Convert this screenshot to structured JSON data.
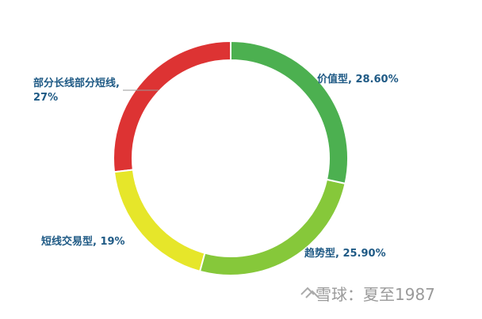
{
  "chart_data": {
    "type": "donut",
    "values": [
      28.6,
      25.9,
      19,
      27
    ],
    "value_labels": [
      "价值型, 28.60%",
      "趋势型, 25.90%",
      "短线交易型, 19%",
      "部分长线部分短线, 27%"
    ],
    "colors": [
      "#4cb050",
      "#86c83a",
      "#e6e62a",
      "#dd3333"
    ]
  },
  "watermark": "雪球：夏至1987"
}
